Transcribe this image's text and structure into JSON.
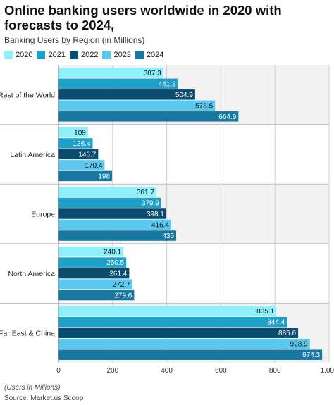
{
  "title": "Online banking users worldwide in 2020 with forecasts to 2024,",
  "subtitle": "Banking Users by Region (in Millions)",
  "footnote": "(Users in Millions)",
  "source": "Source: Market.us Scoop",
  "colors": {
    "2020": "#8ef0fb",
    "2021": "#1fa0c8",
    "2022": "#0b4d6e",
    "2023": "#5bc8f0",
    "2024": "#1678a0"
  },
  "chart_data": {
    "type": "bar",
    "orientation": "horizontal",
    "categories": [
      "Rest of the World",
      "Latin America",
      "Europe",
      "North America",
      "Far East & China"
    ],
    "series": [
      {
        "name": "2020",
        "values": [
          387.3,
          109,
          361.7,
          240.1,
          805.1
        ]
      },
      {
        "name": "2021",
        "values": [
          441.8,
          126.4,
          379.9,
          250.5,
          844.4
        ]
      },
      {
        "name": "2022",
        "values": [
          504.9,
          146.7,
          398.1,
          261.4,
          885.6
        ]
      },
      {
        "name": "2023",
        "values": [
          578.5,
          170.4,
          416.4,
          272.7,
          928.9
        ]
      },
      {
        "name": "2024",
        "values": [
          664.9,
          198,
          435,
          279.6,
          974.3
        ]
      }
    ],
    "xlim": [
      0,
      1000
    ],
    "xticks": [
      "0",
      "200",
      "400",
      "600",
      "800",
      "1,000"
    ],
    "grid": true,
    "legend_position": "top-left"
  }
}
